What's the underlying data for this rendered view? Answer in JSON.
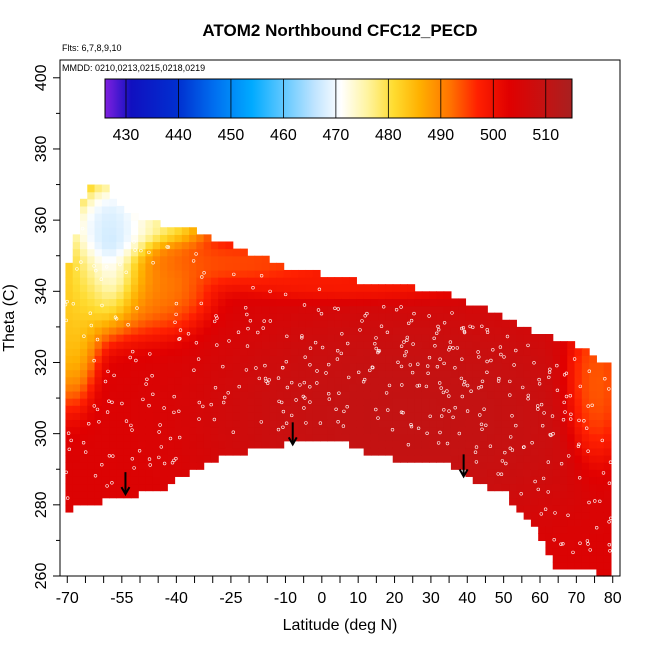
{
  "chart_data": {
    "type": "heatmap",
    "title": "ATOM2 Northbound CFC12_PECD",
    "notes": {
      "flights": "Flts: 6,7,8,9,10",
      "dates": "MMDD: 0210,0213,0215,0218,0219"
    },
    "xlabel": "Latitude (deg N)",
    "ylabel": "Theta (C)",
    "xlim": [
      -72,
      82
    ],
    "ylim": [
      260,
      405
    ],
    "x_ticks": [
      -70,
      -55,
      -40,
      -25,
      -10,
      0,
      10,
      20,
      30,
      40,
      50,
      60,
      70,
      80
    ],
    "x_tick_labels": [
      "-70",
      "-55",
      "-40",
      "-25",
      "-10",
      "0",
      "10",
      "20",
      "30",
      "40",
      "50",
      "60",
      "70",
      "80"
    ],
    "x_minor_ticks": [
      -65,
      -60,
      -50,
      -45,
      -35,
      -30,
      -20,
      -15,
      -5,
      5,
      15,
      25,
      35,
      45,
      55,
      65,
      75
    ],
    "y_ticks": [
      260,
      280,
      300,
      320,
      340,
      360,
      380,
      400
    ],
    "y_tick_labels": [
      "260",
      "280",
      "300",
      "320",
      "340",
      "360",
      "380",
      "400"
    ],
    "colorbar": {
      "range": [
        426,
        515
      ],
      "ticks": [
        430,
        440,
        450,
        460,
        470,
        480,
        490,
        500,
        510
      ],
      "tick_labels": [
        "430",
        "440",
        "450",
        "460",
        "470",
        "480",
        "490",
        "500",
        "510"
      ],
      "stops": [
        {
          "v": 426,
          "c": "#8020e0"
        },
        {
          "v": 431,
          "c": "#1010c0"
        },
        {
          "v": 440,
          "c": "#0030d0"
        },
        {
          "v": 447,
          "c": "#0070f0"
        },
        {
          "v": 454,
          "c": "#00aaff"
        },
        {
          "v": 460,
          "c": "#60c8ff"
        },
        {
          "v": 466,
          "c": "#c0e4ff"
        },
        {
          "v": 471,
          "c": "#ffffff"
        },
        {
          "v": 476,
          "c": "#fff4a0"
        },
        {
          "v": 481,
          "c": "#ffdc30"
        },
        {
          "v": 486,
          "c": "#ffb000"
        },
        {
          "v": 492,
          "c": "#ff7000"
        },
        {
          "v": 497,
          "c": "#ff2000"
        },
        {
          "v": 503,
          "c": "#e00000"
        },
        {
          "v": 509,
          "c": "#c81010"
        },
        {
          "v": 515,
          "c": "#a82020"
        }
      ]
    },
    "coverage": {
      "top": [
        [
          -70.5,
          345
        ],
        [
          -68,
          353
        ],
        [
          -66,
          366
        ],
        [
          -63,
          370
        ],
        [
          -59,
          369
        ],
        [
          -57,
          364
        ],
        [
          -53,
          362
        ],
        [
          -50,
          361
        ],
        [
          -45,
          359
        ],
        [
          -40,
          358
        ],
        [
          -35,
          357
        ],
        [
          -30,
          355
        ],
        [
          -25,
          353
        ],
        [
          -20,
          351
        ],
        [
          -15,
          349
        ],
        [
          -10,
          347
        ],
        [
          -5,
          346
        ],
        [
          0,
          345
        ],
        [
          5,
          344
        ],
        [
          10,
          343
        ],
        [
          15,
          342
        ],
        [
          20,
          341
        ],
        [
          25,
          341
        ],
        [
          30,
          340
        ],
        [
          35,
          339
        ],
        [
          40,
          337
        ],
        [
          45,
          335
        ],
        [
          50,
          333
        ],
        [
          55,
          330
        ],
        [
          60,
          328
        ],
        [
          65,
          326
        ],
        [
          70,
          325
        ],
        [
          75,
          322
        ],
        [
          80,
          318
        ]
      ],
      "bottom": [
        [
          80,
          262
        ],
        [
          78,
          260
        ],
        [
          75,
          262
        ],
        [
          70,
          262
        ],
        [
          65,
          262
        ],
        [
          60,
          272
        ],
        [
          55,
          278
        ],
        [
          50,
          284
        ],
        [
          45,
          285
        ],
        [
          40,
          289
        ],
        [
          35,
          291
        ],
        [
          30,
          292
        ],
        [
          25,
          292
        ],
        [
          20,
          293
        ],
        [
          15,
          294
        ],
        [
          10,
          296
        ],
        [
          5,
          298
        ],
        [
          0,
          299
        ],
        [
          -5,
          298
        ],
        [
          -10,
          297
        ],
        [
          -15,
          296
        ],
        [
          -20,
          295
        ],
        [
          -25,
          295
        ],
        [
          -30,
          292
        ],
        [
          -35,
          290
        ],
        [
          -40,
          287
        ],
        [
          -45,
          284
        ],
        [
          -50,
          283
        ],
        [
          -55,
          282
        ],
        [
          -60,
          281
        ],
        [
          -65,
          280
        ],
        [
          -68,
          279
        ],
        [
          -70.5,
          277
        ]
      ]
    },
    "field_blobs": [
      {
        "lat": -58,
        "theta": 353,
        "rlat": 8,
        "rth": 14,
        "value": 458
      },
      {
        "lat": -53,
        "theta": 358,
        "rlat": 14,
        "rth": 5,
        "value": 470
      },
      {
        "lat": -65,
        "theta": 342,
        "rlat": 6,
        "rth": 10,
        "value": 480
      },
      {
        "lat": -69,
        "theta": 330,
        "rlat": 5,
        "rth": 14,
        "value": 481
      },
      {
        "lat": -45,
        "theta": 343,
        "rlat": 10,
        "rth": 10,
        "value": 489
      },
      {
        "lat": -25,
        "theta": 348,
        "rlat": 22,
        "rth": 4,
        "value": 493
      },
      {
        "lat": 10,
        "theta": 342,
        "rlat": 25,
        "rth": 3,
        "value": 497
      },
      {
        "lat": 75,
        "theta": 312,
        "rlat": 6,
        "rth": 14,
        "value": 490
      },
      {
        "lat": 25,
        "theta": 305,
        "rlat": 35,
        "rth": 20,
        "value": 511
      }
    ],
    "field_base_value": 504,
    "arrows": [
      {
        "lat": -54,
        "theta": 283
      },
      {
        "lat": -8,
        "theta": 297
      },
      {
        "lat": 39,
        "theta": 288
      }
    ]
  }
}
